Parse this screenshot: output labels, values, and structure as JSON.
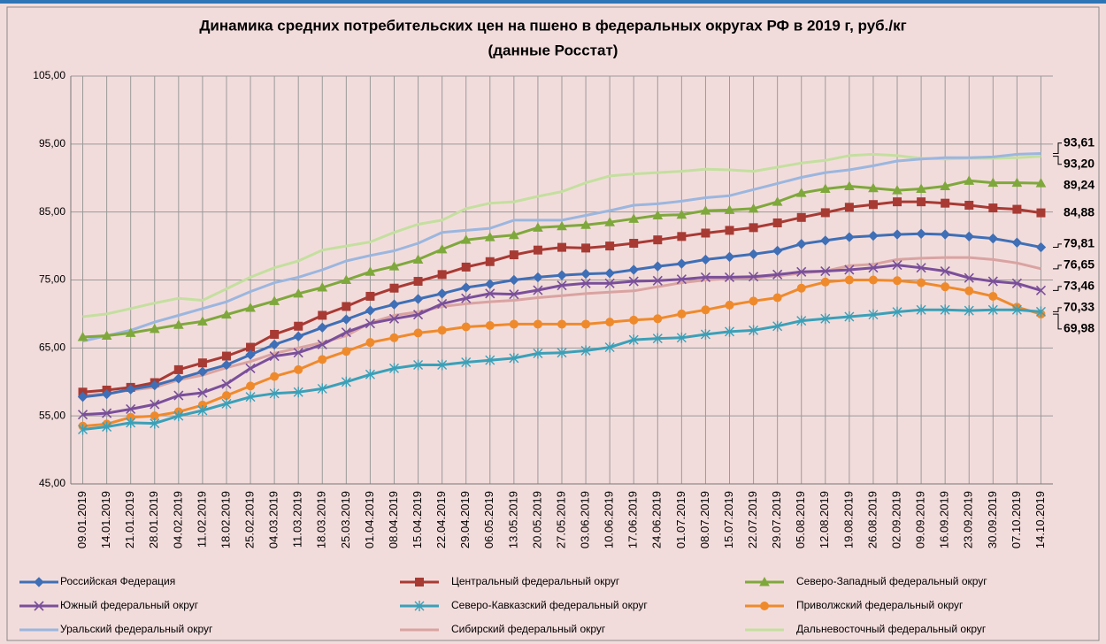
{
  "chart_data": {
    "type": "line",
    "title": "Динамика средних потребительских цен на пшено в федеральных округах РФ в 2019 г, руб./кг",
    "subtitle": "(данные Росстат)",
    "categories": [
      "09.01.2019",
      "14.01.2019",
      "21.01.2019",
      "28.01.2019",
      "04.02.2019",
      "11.02.2019",
      "18.02.2019",
      "25.02.2019",
      "04.03.2019",
      "11.03.2019",
      "18.03.2019",
      "25.03.2019",
      "01.04.2019",
      "08.04.2019",
      "15.04.2019",
      "22.04.2019",
      "29.04.2019",
      "06.05.2019",
      "13.05.2019",
      "20.05.2019",
      "27.05.2019",
      "03.06.2019",
      "10.06.2019",
      "17.06.2019",
      "24.06.2019",
      "01.07.2019",
      "08.07.2019",
      "15.07.2019",
      "22.07.2019",
      "29.07.2019",
      "05.08.2019",
      "12.08.2019",
      "19.08.2019",
      "26.08.2019",
      "02.09.2019",
      "09.09.2019",
      "16.09.2019",
      "23.09.2019",
      "30.09.2019",
      "07.10.2019",
      "14.10.2019"
    ],
    "ylim": [
      45,
      105
    ],
    "yticks": [
      {
        "value": 45,
        "label": "45,00"
      },
      {
        "value": 55,
        "label": "55,00"
      },
      {
        "value": 65,
        "label": "65,00"
      },
      {
        "value": 75,
        "label": "75,00"
      },
      {
        "value": 85,
        "label": "85,00"
      },
      {
        "value": 95,
        "label": "95,00"
      },
      {
        "value": 105,
        "label": "105,00"
      }
    ],
    "grid": true,
    "legend": "bottom",
    "series": [
      {
        "name": "Российская Федерация",
        "color": "#3f6fb6",
        "marker": "diamond",
        "values": [
          57.8,
          58.2,
          58.9,
          59.5,
          60.5,
          61.5,
          62.5,
          64,
          65.5,
          66.7,
          68,
          69.2,
          70.5,
          71.4,
          72.2,
          73,
          73.9,
          74.4,
          75,
          75.4,
          75.7,
          75.9,
          76,
          76.5,
          77,
          77.4,
          78,
          78.4,
          78.8,
          79.3,
          80.3,
          80.8,
          81.3,
          81.5,
          81.7,
          81.8,
          81.7,
          81.4,
          81.1,
          80.5,
          79.81
        ],
        "value_labels": [
          null,
          null,
          null,
          null,
          null,
          null,
          null,
          null,
          null,
          null,
          null,
          null,
          null,
          null,
          null,
          null,
          null,
          null,
          null,
          null,
          null,
          null,
          null,
          null,
          null,
          null,
          null,
          null,
          null,
          null,
          null,
          null,
          null,
          null,
          null,
          null,
          null,
          null,
          null,
          null,
          "79,81"
        ]
      },
      {
        "name": "Центральный федеральный округ",
        "color": "#a83a34",
        "marker": "square",
        "values": [
          58.5,
          58.8,
          59.2,
          59.9,
          61.8,
          62.8,
          63.8,
          65.1,
          67,
          68.2,
          69.8,
          71.1,
          72.6,
          73.8,
          74.8,
          75.8,
          76.9,
          77.7,
          78.7,
          79.4,
          79.8,
          79.7,
          80,
          80.4,
          80.9,
          81.4,
          81.9,
          82.3,
          82.7,
          83.4,
          84.2,
          84.9,
          85.7,
          86.1,
          86.5,
          86.5,
          86.3,
          86,
          85.6,
          85.4,
          84.88
        ],
        "value_labels": [
          null,
          null,
          null,
          null,
          null,
          null,
          null,
          null,
          null,
          null,
          null,
          null,
          null,
          null,
          null,
          null,
          null,
          null,
          null,
          null,
          null,
          null,
          null,
          null,
          null,
          null,
          null,
          null,
          null,
          null,
          null,
          null,
          null,
          null,
          null,
          null,
          null,
          null,
          null,
          null,
          "84,88"
        ]
      },
      {
        "name": "Северо-Западный федеральный округ",
        "color": "#7fa83c",
        "marker": "triangle",
        "values": [
          66.6,
          66.8,
          67.2,
          67.8,
          68.4,
          68.9,
          69.9,
          70.9,
          71.9,
          73,
          73.9,
          75,
          76.2,
          77,
          78,
          79.5,
          80.9,
          81.3,
          81.6,
          82.7,
          82.9,
          83.1,
          83.5,
          84,
          84.5,
          84.6,
          85.2,
          85.3,
          85.5,
          86.5,
          87.8,
          88.4,
          88.8,
          88.5,
          88.2,
          88.4,
          88.8,
          89.6,
          89.3,
          89.3,
          89.24
        ],
        "value_labels": [
          null,
          null,
          null,
          null,
          null,
          null,
          null,
          null,
          null,
          null,
          null,
          null,
          null,
          null,
          null,
          null,
          null,
          null,
          null,
          null,
          null,
          null,
          null,
          null,
          null,
          null,
          null,
          null,
          null,
          null,
          null,
          null,
          null,
          null,
          null,
          null,
          null,
          null,
          null,
          null,
          "89,24"
        ]
      },
      {
        "name": "Южный федеральный округ",
        "color": "#7a4f9a",
        "marker": "cross",
        "values": [
          55.2,
          55.4,
          56,
          56.7,
          58,
          58.4,
          59.7,
          62,
          63.8,
          64.3,
          65.5,
          67.3,
          68.6,
          69.3,
          69.9,
          71.5,
          72.3,
          73,
          72.9,
          73.5,
          74.2,
          74.5,
          74.5,
          74.8,
          74.9,
          75.1,
          75.4,
          75.4,
          75.5,
          75.8,
          76.2,
          76.3,
          76.5,
          76.8,
          77.2,
          76.8,
          76.3,
          75.3,
          74.8,
          74.5,
          73.46
        ],
        "value_labels": [
          null,
          null,
          null,
          null,
          null,
          null,
          null,
          null,
          null,
          null,
          null,
          null,
          null,
          null,
          null,
          null,
          null,
          null,
          null,
          null,
          null,
          null,
          null,
          null,
          null,
          null,
          null,
          null,
          null,
          null,
          null,
          null,
          null,
          null,
          null,
          null,
          null,
          null,
          null,
          null,
          "73,46"
        ]
      },
      {
        "name": "Северо-Кавказский федеральный округ",
        "color": "#3aa0b8",
        "marker": "star",
        "values": [
          53,
          53.4,
          54,
          53.9,
          55,
          55.8,
          56.8,
          57.8,
          58.3,
          58.5,
          59,
          60,
          61.1,
          62,
          62.5,
          62.5,
          62.9,
          63.2,
          63.5,
          64.2,
          64.3,
          64.6,
          65.1,
          66.2,
          66.4,
          66.5,
          67,
          67.4,
          67.6,
          68.2,
          69,
          69.3,
          69.6,
          69.9,
          70.3,
          70.6,
          70.6,
          70.5,
          70.6,
          70.6,
          70.33
        ],
        "value_labels": [
          null,
          null,
          null,
          null,
          null,
          null,
          null,
          null,
          null,
          null,
          null,
          null,
          null,
          null,
          null,
          null,
          null,
          null,
          null,
          null,
          null,
          null,
          null,
          null,
          null,
          null,
          null,
          null,
          null,
          null,
          null,
          null,
          null,
          null,
          null,
          null,
          null,
          null,
          null,
          null,
          "70,33"
        ]
      },
      {
        "name": "Приволжский федеральный округ",
        "color": "#ef8a2c",
        "marker": "circle",
        "values": [
          53.5,
          53.8,
          54.8,
          55,
          55.6,
          56.6,
          58,
          59.4,
          60.8,
          61.8,
          63.3,
          64.5,
          65.8,
          66.5,
          67.2,
          67.6,
          68.1,
          68.3,
          68.5,
          68.5,
          68.5,
          68.5,
          68.8,
          69.1,
          69.3,
          70,
          70.6,
          71.3,
          71.9,
          72.4,
          73.8,
          74.7,
          75,
          75,
          74.9,
          74.6,
          74,
          73.4,
          72.6,
          71,
          69.98
        ],
        "value_labels": [
          null,
          null,
          null,
          null,
          null,
          null,
          null,
          null,
          null,
          null,
          null,
          null,
          null,
          null,
          null,
          null,
          null,
          null,
          null,
          null,
          null,
          null,
          null,
          null,
          null,
          null,
          null,
          null,
          null,
          null,
          null,
          null,
          null,
          null,
          null,
          null,
          null,
          null,
          null,
          null,
          "69,98"
        ]
      },
      {
        "name": "Уральский федеральный округ",
        "color": "#9bb6df",
        "values": [
          66,
          66.8,
          67.6,
          68.8,
          69.8,
          70.8,
          71.8,
          73.3,
          74.6,
          75.4,
          76.5,
          77.8,
          78.6,
          79.3,
          80.4,
          82,
          82.3,
          82.6,
          83.8,
          83.8,
          83.8,
          84.5,
          85.2,
          86,
          86.2,
          86.6,
          87.1,
          87.4,
          88.3,
          89.2,
          90.1,
          90.8,
          91.2,
          91.8,
          92.5,
          92.8,
          93,
          93,
          93.1,
          93.5,
          93.61
        ],
        "value_labels": [
          null,
          null,
          null,
          null,
          null,
          null,
          null,
          null,
          null,
          null,
          null,
          null,
          null,
          null,
          null,
          null,
          null,
          null,
          null,
          null,
          null,
          null,
          null,
          null,
          null,
          null,
          null,
          null,
          null,
          null,
          null,
          null,
          null,
          null,
          null,
          null,
          null,
          null,
          null,
          null,
          "93,61"
        ]
      },
      {
        "name": "Сибирский федеральный округ",
        "color": "#d9a3a1",
        "values": [
          58,
          58.3,
          58.8,
          59.2,
          60.3,
          61,
          62.1,
          63,
          64.2,
          65,
          65.8,
          66.8,
          68.7,
          69.8,
          70.3,
          71.1,
          71.5,
          71.8,
          72,
          72.4,
          72.7,
          73,
          73.2,
          73.4,
          74,
          74.6,
          75,
          75.2,
          75.3,
          75.6,
          76,
          76.3,
          77.1,
          77.3,
          78,
          78.2,
          78.3,
          78.3,
          78,
          77.5,
          76.65
        ],
        "value_labels": [
          null,
          null,
          null,
          null,
          null,
          null,
          null,
          null,
          null,
          null,
          null,
          null,
          null,
          null,
          null,
          null,
          null,
          null,
          null,
          null,
          null,
          null,
          null,
          null,
          null,
          null,
          null,
          null,
          null,
          null,
          null,
          null,
          null,
          null,
          null,
          null,
          null,
          null,
          null,
          null,
          "76,65"
        ]
      },
      {
        "name": "Дальневосточный федеральный округ",
        "color": "#c4df9f",
        "values": [
          69.6,
          70,
          70.8,
          71.6,
          72.3,
          72,
          73.7,
          75.4,
          76.8,
          77.8,
          79.4,
          80,
          80.6,
          82,
          83.2,
          83.8,
          85.5,
          86.3,
          86.5,
          87.3,
          88,
          89.3,
          90.3,
          90.6,
          90.8,
          91,
          91.3,
          91.2,
          91,
          91.6,
          92.2,
          92.6,
          93.3,
          93.5,
          93.3,
          92.9,
          92.8,
          92.9,
          92.9,
          93,
          93.2
        ],
        "value_labels": [
          null,
          null,
          null,
          null,
          null,
          null,
          null,
          null,
          null,
          null,
          null,
          null,
          null,
          null,
          null,
          null,
          null,
          null,
          null,
          null,
          null,
          null,
          null,
          null,
          null,
          null,
          null,
          null,
          null,
          null,
          null,
          null,
          null,
          null,
          null,
          null,
          null,
          null,
          null,
          null,
          "93,20"
        ]
      }
    ]
  }
}
